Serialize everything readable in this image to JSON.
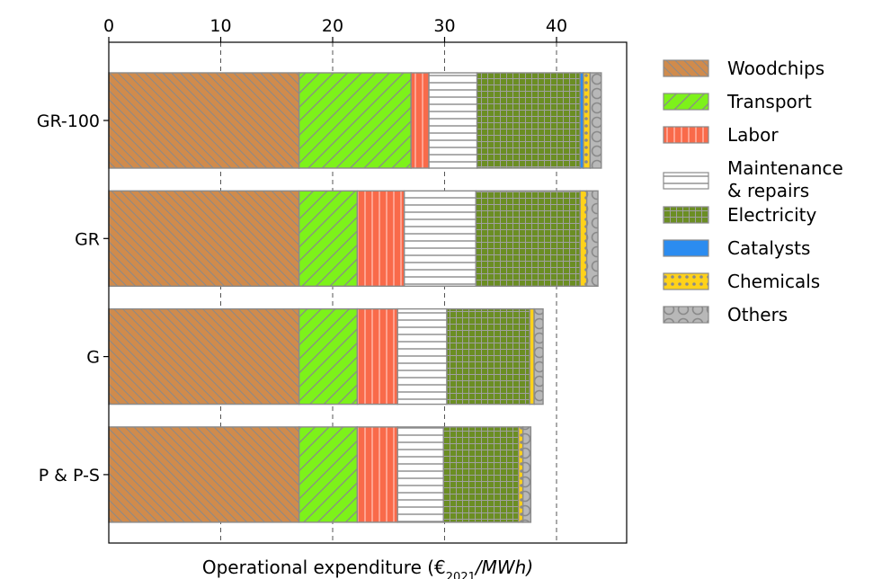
{
  "chart_data": {
    "type": "bar",
    "orientation": "horizontal",
    "stacked": true,
    "categories": [
      "GR-100",
      "GR",
      "G",
      "P & P-S"
    ],
    "xlabel": "Operational expenditure (€",
    "xlabel_sub": "2021",
    "xlabel_tail": "/MWh)",
    "xlim": [
      0,
      46
    ],
    "xticks": [
      0,
      10,
      20,
      30,
      40
    ],
    "x_axis_position": "top",
    "grid": "vertical-dashed",
    "legend_position": "right",
    "series": [
      {
        "name": "Woodchips",
        "color": "#d08b4c",
        "hatch": "diagonal",
        "values": [
          17.0,
          17.0,
          17.0,
          17.0
        ]
      },
      {
        "name": "Transport",
        "color": "#7df21a",
        "hatch": "back-diagonal",
        "values": [
          10.0,
          5.2,
          5.2,
          5.2
        ]
      },
      {
        "name": "Labor",
        "color": "#f96a4a",
        "hatch": "vertical",
        "values": [
          1.6,
          4.2,
          3.6,
          3.6
        ]
      },
      {
        "name": "Maintenance\n& repairs",
        "color": "#ffffff",
        "hatch": "horizontal",
        "values": [
          4.3,
          6.4,
          4.4,
          4.1
        ]
      },
      {
        "name": "Electricity",
        "color": "#6b8e23",
        "hatch": "grid",
        "values": [
          9.2,
          9.3,
          7.4,
          6.7
        ]
      },
      {
        "name": "Catalysts",
        "color": "#2b8cf0",
        "hatch": "none",
        "values": [
          0.3,
          0.0,
          0.0,
          0.0
        ]
      },
      {
        "name": "Chemicals",
        "color": "#ffd21a",
        "hatch": "dots",
        "values": [
          0.6,
          0.6,
          0.4,
          0.4
        ]
      },
      {
        "name": "Others",
        "color": "#b8b8b8",
        "hatch": "circles",
        "values": [
          1.0,
          1.0,
          0.8,
          0.7
        ]
      }
    ]
  }
}
